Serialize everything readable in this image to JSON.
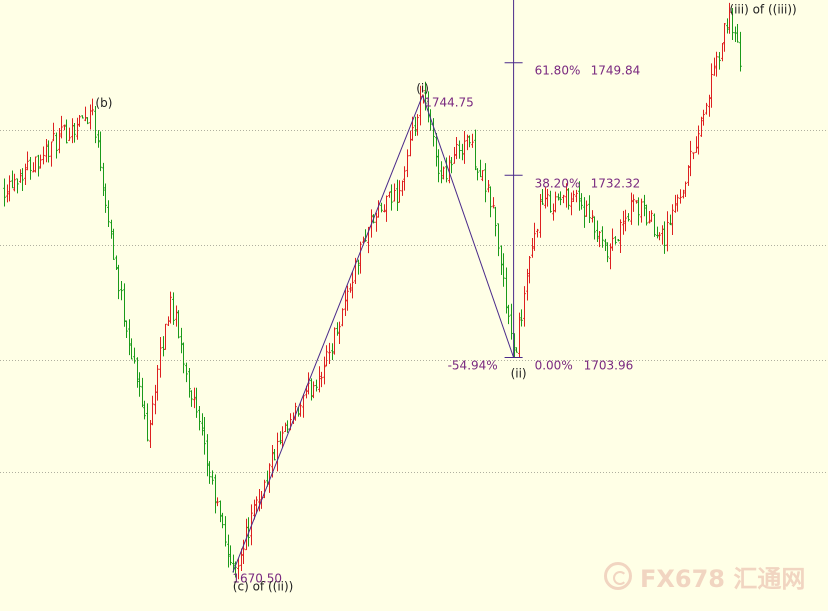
{
  "chart_data": {
    "type": "ohlc",
    "ylim": [
      1664.5,
      1759.6
    ],
    "grid": "horizontal-dotted",
    "colors": {
      "background": "#ffffe6",
      "up_bar": "#dd2020",
      "down_bar": "#1a9a1a",
      "wave_line": "#4a2a8a",
      "fib_line": "#4a2a8a",
      "fib_text": "#7a2a80",
      "grid": "#b0b0a0",
      "label": "#222222",
      "watermark": "#e7b3a3"
    },
    "gridlines": [
      1739.3,
      1721.5,
      1703.6,
      1686.1
    ],
    "path_points": [
      {
        "bar": 0,
        "y": 1730.5
      },
      {
        "bar": 34,
        "y": 1742.5
      },
      {
        "bar": 44,
        "y": 1715.0
      },
      {
        "bar": 55,
        "y": 1692.5
      },
      {
        "bar": 64,
        "y": 1713.0
      },
      {
        "bar": 80,
        "y": 1683.8
      },
      {
        "bar": 88,
        "y": 1670.5
      },
      {
        "bar": 104,
        "y": 1689.0
      },
      {
        "bar": 124,
        "y": 1703.5
      },
      {
        "bar": 140,
        "y": 1724.5
      },
      {
        "bar": 152,
        "y": 1730.0
      },
      {
        "bar": 161,
        "y": 1744.7
      },
      {
        "bar": 168,
        "y": 1732.0
      },
      {
        "bar": 178,
        "y": 1738.5
      },
      {
        "bar": 188,
        "y": 1727.0
      },
      {
        "bar": 196,
        "y": 1704.0
      },
      {
        "bar": 206,
        "y": 1727.5
      },
      {
        "bar": 220,
        "y": 1729.5
      },
      {
        "bar": 232,
        "y": 1719.5
      },
      {
        "bar": 242,
        "y": 1728.0
      },
      {
        "bar": 254,
        "y": 1723.0
      },
      {
        "bar": 262,
        "y": 1732.0
      },
      {
        "bar": 272,
        "y": 1746.5
      },
      {
        "bar": 279,
        "y": 1757.5
      },
      {
        "bar": 283,
        "y": 1749.5
      }
    ],
    "wave_points": [
      {
        "bar": 88,
        "y": 1670.5
      },
      {
        "bar": 161,
        "y": 1744.75
      },
      {
        "bar": 196,
        "y": 1703.96
      }
    ],
    "fib_levels": [
      {
        "pct": "61.80%",
        "value": "1749.84",
        "y": 1749.84
      },
      {
        "pct": "38.20%",
        "value": "1732.32",
        "y": 1732.32
      },
      {
        "pct": "0.00%",
        "value": "1703.96",
        "y": 1703.96
      }
    ],
    "retracement_label": "-54.94%",
    "price_labels": [
      {
        "text": "1744.75",
        "bar": 162,
        "y": 1744.75
      },
      {
        "text": "1670.50",
        "bar": 89,
        "y": 1670.5
      }
    ],
    "wave_labels": [
      {
        "text": "(b)",
        "bar": 34,
        "y": 1742.5
      },
      {
        "text": "(i)",
        "bar": 161,
        "y": 1744.75
      },
      {
        "text": "(ii)",
        "bar": 196,
        "y": 1703.96
      },
      {
        "text": "(c) of ((ii))",
        "bar": 88,
        "y": 1670.5
      },
      {
        "text": "(iii) of ((iii))",
        "bar": 279,
        "y": 1757.5
      }
    ]
  },
  "watermark": {
    "text": "FX678 汇通网",
    "icon": "fx678-logo-icon"
  }
}
